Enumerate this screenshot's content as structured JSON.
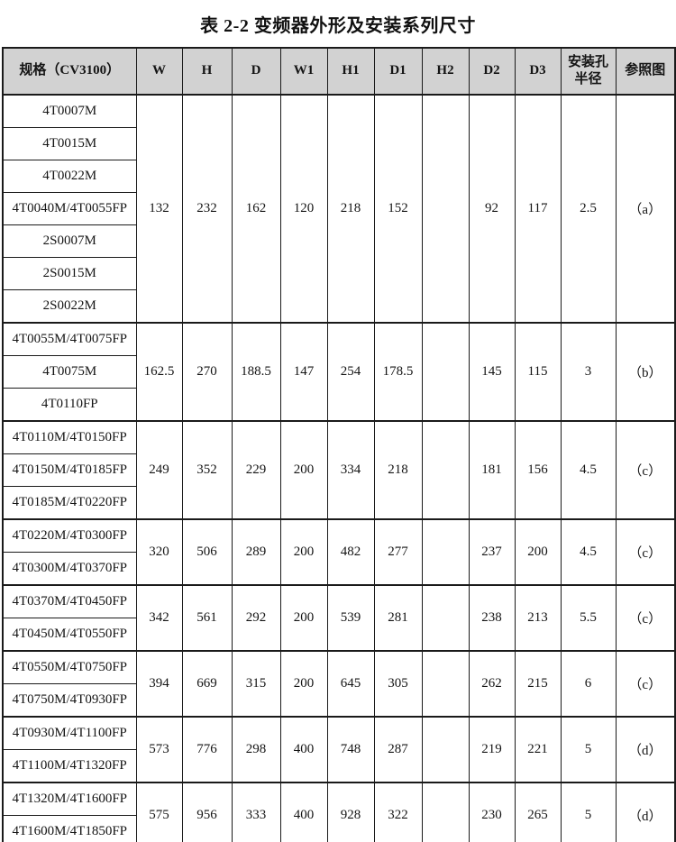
{
  "page": {
    "title": "表 2-2  变频器外形及安装系列尺寸"
  },
  "colors": {
    "header_bg": "#d2d2d2",
    "border": "#1a1a1a",
    "text": "#141414"
  },
  "table": {
    "headers": [
      [
        "规格（CV3100）"
      ],
      [
        "W"
      ],
      [
        "H"
      ],
      [
        "D"
      ],
      [
        "W1"
      ],
      [
        "H1"
      ],
      [
        "D1"
      ],
      [
        "H2"
      ],
      [
        "D2"
      ],
      [
        "D3"
      ],
      [
        "安装孔",
        "半径"
      ],
      [
        "参照图"
      ]
    ],
    "groups": [
      {
        "models": [
          "4T0007M",
          "4T0015M",
          "4T0022M",
          "4T0040M/4T0055FP",
          "2S0007M",
          "2S0015M",
          "2S0022M"
        ],
        "values": [
          "132",
          "232",
          "162",
          "120",
          "218",
          "152",
          "",
          "92",
          "117",
          "2.5",
          "（a）"
        ]
      },
      {
        "models": [
          "4T0055M/4T0075FP",
          "4T0075M",
          "4T0110FP"
        ],
        "values": [
          "162.5",
          "270",
          "188.5",
          "147",
          "254",
          "178.5",
          "",
          "145",
          "115",
          "3",
          "（b）"
        ]
      },
      {
        "models": [
          "4T0110M/4T0150FP",
          "4T0150M/4T0185FP",
          "4T0185M/4T0220FP"
        ],
        "values": [
          "249",
          "352",
          "229",
          "200",
          "334",
          "218",
          "",
          "181",
          "156",
          "4.5",
          "（c）"
        ]
      },
      {
        "models": [
          "4T0220M/4T0300FP",
          "4T0300M/4T0370FP"
        ],
        "values": [
          "320",
          "506",
          "289",
          "200",
          "482",
          "277",
          "",
          "237",
          "200",
          "4.5",
          "（c）"
        ]
      },
      {
        "models": [
          "4T0370M/4T0450FP",
          "4T0450M/4T0550FP"
        ],
        "values": [
          "342",
          "561",
          "292",
          "200",
          "539",
          "281",
          "",
          "238",
          "213",
          "5.5",
          "（c）"
        ]
      },
      {
        "models": [
          "4T0550M/4T0750FP",
          "4T0750M/4T0930FP"
        ],
        "values": [
          "394",
          "669",
          "315",
          "200",
          "645",
          "305",
          "",
          "262",
          "215",
          "6",
          "（c）"
        ]
      },
      {
        "models": [
          "4T0930M/4T1100FP",
          "4T1100M/4T1320FP"
        ],
        "values": [
          "573",
          "776",
          "298",
          "400",
          "748",
          "287",
          "",
          "219",
          "221",
          "5",
          "（d）"
        ]
      },
      {
        "models": [
          "4T1320M/4T1600FP",
          "4T1600M/4T1850FP"
        ],
        "values": [
          "575",
          "956",
          "333",
          "400",
          "928",
          "322",
          "",
          "230",
          "265",
          "5",
          "（d）"
        ]
      }
    ]
  }
}
